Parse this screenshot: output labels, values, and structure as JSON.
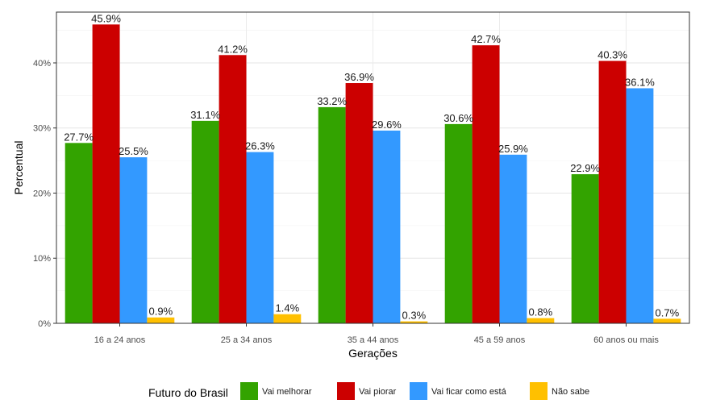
{
  "chart_data": {
    "type": "bar",
    "xlabel": "Gerações",
    "ylabel": "Percentual",
    "ylim": [
      0,
      50
    ],
    "yticks": [
      0,
      10,
      20,
      30,
      40
    ],
    "ytick_labels": [
      "0%",
      "10%",
      "20%",
      "30%",
      "40%"
    ],
    "categories": [
      "16 a 24 anos",
      "25 a 34 anos",
      "35 a 44 anos",
      "45 a 59 anos",
      "60 anos ou mais"
    ],
    "legend_title": "Futuro do Brasil",
    "legend_position": "bottom",
    "grid": true,
    "series": [
      {
        "name": "Vai melhorar",
        "color": "#33a300",
        "values": [
          27.7,
          31.1,
          33.2,
          30.6,
          22.9
        ],
        "labels": [
          "27.7%",
          "31.1%",
          "33.2%",
          "30.6%",
          "22.9%"
        ]
      },
      {
        "name": "Vai piorar",
        "color": "#cc0000",
        "values": [
          45.9,
          41.2,
          36.9,
          42.7,
          40.3
        ],
        "labels": [
          "45.9%",
          "41.2%",
          "36.9%",
          "42.7%",
          "40.3%"
        ]
      },
      {
        "name": "Vai ficar como está",
        "color": "#3399ff",
        "values": [
          25.5,
          26.3,
          29.6,
          25.9,
          36.1
        ],
        "labels": [
          "25.5%",
          "26.3%",
          "29.6%",
          "25.9%",
          "36.1%"
        ]
      },
      {
        "name": "Não sabe",
        "color": "#ffc000",
        "values": [
          0.9,
          1.4,
          0.3,
          0.8,
          0.7
        ],
        "labels": [
          "0.9%",
          "1.4%",
          "0.3%",
          "0.8%",
          "0.7%"
        ]
      }
    ]
  }
}
